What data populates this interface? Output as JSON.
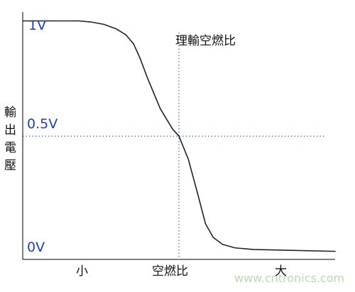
{
  "chart_data": {
    "type": "line",
    "title": "",
    "xlabel": "",
    "ylabel": "輸出電壓",
    "x_categories": [
      "小",
      "空燃比",
      "大"
    ],
    "y_tick_labels": [
      "1V",
      "0.5V",
      "0V"
    ],
    "y_values": [
      1.0,
      0.5,
      0.0
    ],
    "ylim": [
      -0.035,
      1.06
    ],
    "xlim": [
      0,
      1
    ],
    "reference_lines": {
      "vertical_label": "理輸空燃比",
      "vertical_at_x": 0.5,
      "horizontal_at_y": 0.5
    },
    "series": [
      {
        "values": [
          {
            "x": 0.0,
            "y": 1.0
          },
          {
            "x": 0.18,
            "y": 1.0
          },
          {
            "x": 0.22,
            "y": 0.995
          },
          {
            "x": 0.26,
            "y": 0.985
          },
          {
            "x": 0.3,
            "y": 0.965
          },
          {
            "x": 0.33,
            "y": 0.94
          },
          {
            "x": 0.355,
            "y": 0.9
          },
          {
            "x": 0.375,
            "y": 0.84
          },
          {
            "x": 0.4,
            "y": 0.75
          },
          {
            "x": 0.44,
            "y": 0.62
          },
          {
            "x": 0.48,
            "y": 0.53
          },
          {
            "x": 0.5,
            "y": 0.5
          },
          {
            "x": 0.53,
            "y": 0.4
          },
          {
            "x": 0.56,
            "y": 0.25
          },
          {
            "x": 0.585,
            "y": 0.12
          },
          {
            "x": 0.61,
            "y": 0.06
          },
          {
            "x": 0.64,
            "y": 0.03
          },
          {
            "x": 0.68,
            "y": 0.015
          },
          {
            "x": 0.74,
            "y": 0.008
          },
          {
            "x": 1.0,
            "y": 0.0
          }
        ]
      }
    ],
    "grid": false,
    "colors": {
      "curve": "#222222",
      "axis": "#000000",
      "reference": "#1f3fbf",
      "tick_text": "#1f3fbf",
      "label_text": "#111111"
    }
  },
  "watermark": "www.cntronics.com"
}
